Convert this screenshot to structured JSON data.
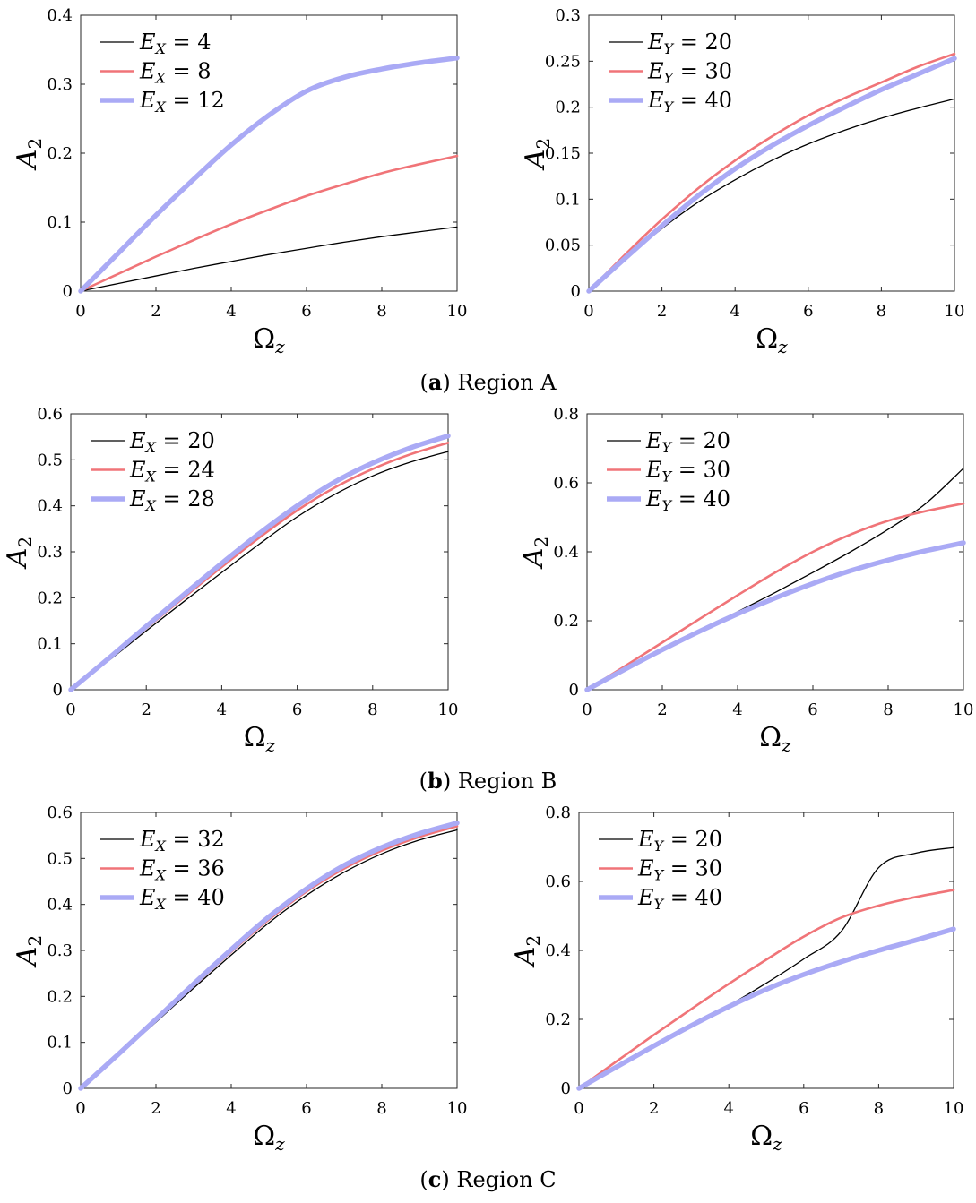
{
  "colors": {
    "black": "#000000",
    "red": "#f07478",
    "blue": "#aaaaf5"
  },
  "captions": [
    {
      "letter": "a",
      "text": "Region A"
    },
    {
      "letter": "b",
      "text": "Region B"
    },
    {
      "letter": "c",
      "text": "Region C"
    }
  ],
  "chart_data": [
    {
      "type": "line",
      "region": "A",
      "xlabel": "Ωz",
      "ylabel": "A2",
      "xlim": [
        0,
        10
      ],
      "ylim": [
        0,
        0.4
      ],
      "xticks": [
        "0",
        "2",
        "4",
        "6",
        "8",
        "10"
      ],
      "yticks": [
        "0",
        "0.1",
        "0.2",
        "0.3",
        "0.4"
      ],
      "legend_position": "top-left",
      "x": [
        0,
        1,
        2,
        3,
        4,
        5,
        6,
        7,
        8,
        9,
        10
      ],
      "series": [
        {
          "name": "EX = 4",
          "sym": "E",
          "sub": "X",
          "val": "4",
          "color": "black",
          "values": [
            0,
            0.011,
            0.022,
            0.033,
            0.043,
            0.053,
            0.062,
            0.071,
            0.079,
            0.086,
            0.093
          ]
        },
        {
          "name": "EX = 8",
          "sym": "E",
          "sub": "X",
          "val": "8",
          "color": "red",
          "values": [
            0,
            0.025,
            0.05,
            0.074,
            0.097,
            0.118,
            0.138,
            0.155,
            0.171,
            0.184,
            0.196
          ]
        },
        {
          "name": "EX = 12",
          "sym": "E",
          "sub": "X",
          "val": "12",
          "color": "blue",
          "values": [
            0,
            0.055,
            0.11,
            0.162,
            0.212,
            0.255,
            0.29,
            0.31,
            0.322,
            0.331,
            0.338
          ]
        }
      ]
    },
    {
      "type": "line",
      "region": "A",
      "xlabel": "Ωz",
      "ylabel": "A2",
      "xlim": [
        0,
        10
      ],
      "ylim": [
        0,
        0.3
      ],
      "xticks": [
        "0",
        "2",
        "4",
        "6",
        "8",
        "10"
      ],
      "yticks": [
        "0",
        "0.05",
        "0.1",
        "0.15",
        "0.2",
        "0.25",
        "0.3"
      ],
      "legend_position": "top-left",
      "x": [
        0,
        1,
        2,
        3,
        4,
        5,
        6,
        7,
        8,
        9,
        10
      ],
      "series": [
        {
          "name": "EY = 20",
          "sym": "E",
          "sub": "Y",
          "val": "20",
          "color": "black",
          "values": [
            0,
            0.035,
            0.068,
            0.097,
            0.121,
            0.142,
            0.16,
            0.175,
            0.188,
            0.199,
            0.209
          ]
        },
        {
          "name": "EY = 30",
          "sym": "E",
          "sub": "Y",
          "val": "30",
          "color": "red",
          "values": [
            0,
            0.04,
            0.078,
            0.112,
            0.142,
            0.168,
            0.191,
            0.21,
            0.227,
            0.244,
            0.258
          ]
        },
        {
          "name": "EY = 40",
          "sym": "E",
          "sub": "Y",
          "val": "40",
          "color": "blue",
          "values": [
            0,
            0.036,
            0.071,
            0.104,
            0.133,
            0.158,
            0.18,
            0.2,
            0.219,
            0.236,
            0.253
          ]
        }
      ]
    },
    {
      "type": "line",
      "region": "B",
      "xlabel": "Ωz",
      "ylabel": "A2",
      "xlim": [
        0,
        10
      ],
      "ylim": [
        0,
        0.6
      ],
      "xticks": [
        "0",
        "2",
        "4",
        "6",
        "8",
        "10"
      ],
      "yticks": [
        "0",
        "0.1",
        "0.2",
        "0.3",
        "0.4",
        "0.5",
        "0.6"
      ],
      "legend_position": "top-left",
      "x": [
        0,
        1,
        2,
        3,
        4,
        5,
        6,
        7,
        8,
        9,
        10
      ],
      "series": [
        {
          "name": "EX = 20",
          "sym": "E",
          "sub": "X",
          "val": "20",
          "color": "black",
          "values": [
            0,
            0.063,
            0.128,
            0.192,
            0.255,
            0.317,
            0.376,
            0.425,
            0.465,
            0.495,
            0.518
          ]
        },
        {
          "name": "EX = 24",
          "sym": "E",
          "sub": "X",
          "val": "24",
          "color": "red",
          "values": [
            0,
            0.066,
            0.134,
            0.201,
            0.267,
            0.331,
            0.39,
            0.44,
            0.48,
            0.512,
            0.537
          ]
        },
        {
          "name": "EX = 28",
          "sym": "E",
          "sub": "X",
          "val": "28",
          "color": "blue",
          "values": [
            0,
            0.068,
            0.138,
            0.207,
            0.275,
            0.34,
            0.4,
            0.452,
            0.493,
            0.526,
            0.552
          ]
        }
      ]
    },
    {
      "type": "line",
      "region": "B",
      "xlabel": "Ωz",
      "ylabel": "A2",
      "xlim": [
        0,
        10
      ],
      "ylim": [
        0,
        0.8
      ],
      "xticks": [
        "0",
        "2",
        "4",
        "6",
        "8",
        "10"
      ],
      "yticks": [
        "0",
        "0.2",
        "0.4",
        "0.6",
        "0.8"
      ],
      "legend_position": "top-left",
      "x": [
        0,
        1,
        2,
        3,
        4,
        5,
        6,
        7,
        8,
        9,
        10
      ],
      "series": [
        {
          "name": "EY = 20",
          "sym": "E",
          "sub": "Y",
          "val": "20",
          "color": "black",
          "values": [
            0,
            0.058,
            0.116,
            0.172,
            0.226,
            0.282,
            0.34,
            0.4,
            0.465,
            0.54,
            0.642
          ]
        },
        {
          "name": "EY = 30",
          "sym": "E",
          "sub": "Y",
          "val": "30",
          "color": "red",
          "values": [
            0,
            0.068,
            0.137,
            0.206,
            0.274,
            0.34,
            0.4,
            0.45,
            0.49,
            0.518,
            0.54
          ]
        },
        {
          "name": "EY = 40",
          "sym": "E",
          "sub": "Y",
          "val": "40",
          "color": "blue",
          "values": [
            0,
            0.059,
            0.116,
            0.17,
            0.22,
            0.266,
            0.308,
            0.345,
            0.376,
            0.403,
            0.426
          ]
        }
      ]
    },
    {
      "type": "line",
      "region": "C",
      "xlabel": "Ωz",
      "ylabel": "A2",
      "xlim": [
        0,
        10
      ],
      "ylim": [
        0,
        0.6
      ],
      "xticks": [
        "0",
        "2",
        "4",
        "6",
        "8",
        "10"
      ],
      "yticks": [
        "0",
        "0.1",
        "0.2",
        "0.3",
        "0.4",
        "0.5",
        "0.6"
      ],
      "legend_position": "top-left",
      "x": [
        0,
        1,
        2,
        3,
        4,
        5,
        6,
        7,
        8,
        9,
        10
      ],
      "series": [
        {
          "name": "EX = 32",
          "sym": "E",
          "sub": "X",
          "val": "32",
          "color": "black",
          "values": [
            0,
            0.071,
            0.144,
            0.218,
            0.29,
            0.36,
            0.42,
            0.47,
            0.51,
            0.54,
            0.562
          ]
        },
        {
          "name": "EX = 36",
          "sym": "E",
          "sub": "X",
          "val": "36",
          "color": "red",
          "values": [
            0,
            0.073,
            0.148,
            0.223,
            0.297,
            0.367,
            0.428,
            0.478,
            0.517,
            0.547,
            0.57
          ]
        },
        {
          "name": "EX = 40",
          "sym": "E",
          "sub": "X",
          "val": "40",
          "color": "blue",
          "values": [
            0,
            0.074,
            0.15,
            0.227,
            0.302,
            0.373,
            0.434,
            0.485,
            0.524,
            0.554,
            0.577
          ]
        }
      ]
    },
    {
      "type": "line",
      "region": "C",
      "xlabel": "Ωz",
      "ylabel": "A2",
      "xlim": [
        0,
        10
      ],
      "ylim": [
        0,
        0.8
      ],
      "xticks": [
        "0",
        "2",
        "4",
        "6",
        "8",
        "10"
      ],
      "yticks": [
        "0",
        "0.2",
        "0.4",
        "0.6",
        "0.8"
      ],
      "legend_position": "top-left",
      "x": [
        0,
        1,
        2,
        3,
        4,
        5,
        6,
        7,
        8,
        9,
        10
      ],
      "series": [
        {
          "name": "EY = 20",
          "sym": "E",
          "sub": "Y",
          "val": "20",
          "color": "black",
          "values": [
            0,
            0.06,
            0.12,
            0.18,
            0.24,
            0.305,
            0.375,
            0.455,
            0.64,
            0.682,
            0.698
          ]
        },
        {
          "name": "EY = 30",
          "sym": "E",
          "sub": "Y",
          "val": "30",
          "color": "red",
          "values": [
            0,
            0.078,
            0.155,
            0.23,
            0.303,
            0.373,
            0.44,
            0.495,
            0.53,
            0.555,
            0.575
          ]
        },
        {
          "name": "EY = 40",
          "sym": "E",
          "sub": "Y",
          "val": "40",
          "color": "blue",
          "values": [
            0,
            0.062,
            0.123,
            0.182,
            0.237,
            0.287,
            0.33,
            0.367,
            0.4,
            0.43,
            0.462
          ]
        }
      ]
    }
  ]
}
